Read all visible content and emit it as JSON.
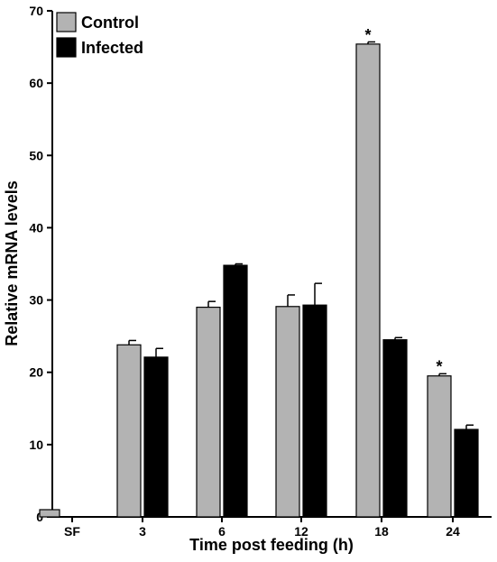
{
  "chart_data": {
    "type": "bar",
    "title": "",
    "xlabel": "Time post feeding (h)",
    "ylabel": "Relative mRNA levels",
    "ylim": [
      0,
      70
    ],
    "yticks": [
      0,
      10,
      20,
      30,
      40,
      50,
      60,
      70
    ],
    "grid": false,
    "legend_position": "top-left",
    "categories": [
      "SF",
      "3",
      "6",
      "12",
      "18",
      "24"
    ],
    "series": [
      {
        "name": "Control",
        "color": "#b3b3b3",
        "values": [
          1.0,
          23.8,
          29.0,
          29.1,
          65.4,
          19.5
        ],
        "errors": [
          0.0,
          0.6,
          0.8,
          1.6,
          0.3,
          0.3
        ]
      },
      {
        "name": "Infected",
        "color": "#000000",
        "values": [
          null,
          22.1,
          34.8,
          29.3,
          24.5,
          12.1
        ],
        "errors": [
          null,
          1.2,
          0.2,
          3.0,
          0.3,
          0.6
        ]
      }
    ],
    "annotations": [
      {
        "category": "18",
        "series": "Control",
        "text": "*"
      },
      {
        "category": "24",
        "series": "Control",
        "text": "*"
      }
    ]
  }
}
